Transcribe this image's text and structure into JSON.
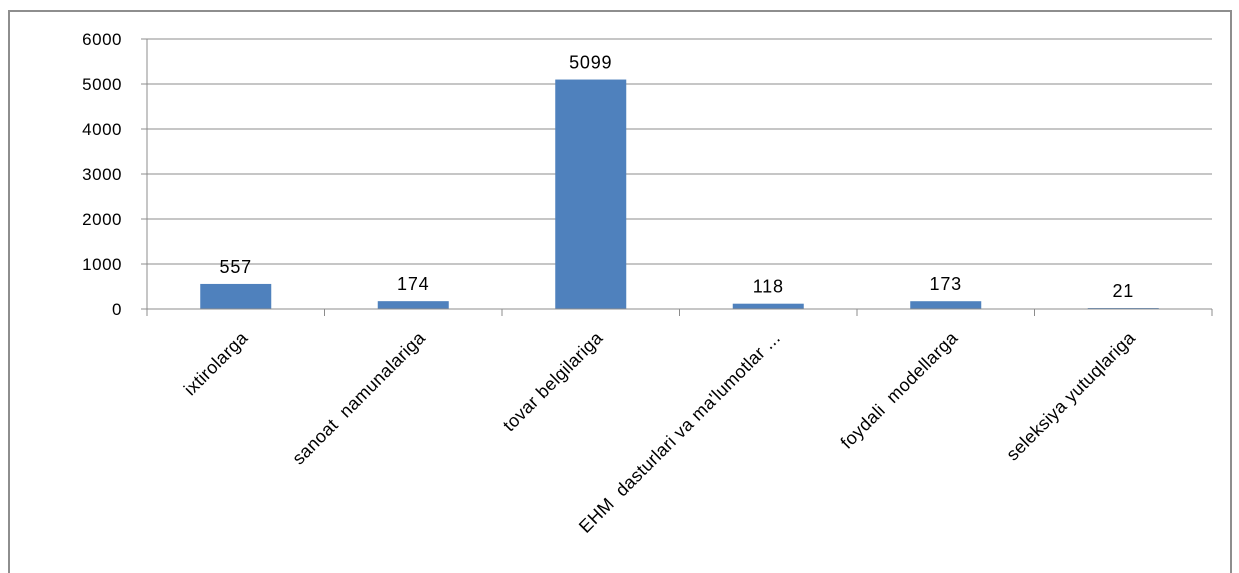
{
  "chart_data": {
    "type": "bar",
    "categories": [
      "ixtirolarga",
      "sanoat  namunalariga",
      "tovar belgilariga",
      "EHM  dasturlari va ma'lumotlar ...",
      "foydali  modellarga",
      "seleksiya yutuqlariga"
    ],
    "values": [
      557,
      174,
      5099,
      118,
      173,
      21
    ],
    "data_labels": [
      "557",
      "174",
      "5099",
      "118",
      "173",
      "21"
    ],
    "y_ticks": [
      "0",
      "1000",
      "2000",
      "3000",
      "4000",
      "5000",
      "6000"
    ],
    "ylim": [
      0,
      6000
    ],
    "title": "",
    "xlabel": "",
    "ylabel": "",
    "grid": true,
    "legend": "none",
    "colors": {
      "bar": "#4f81bd",
      "gridline": "#8c8c8c",
      "axis": "#8c8c8c",
      "frame": "#8e8e8e"
    }
  }
}
